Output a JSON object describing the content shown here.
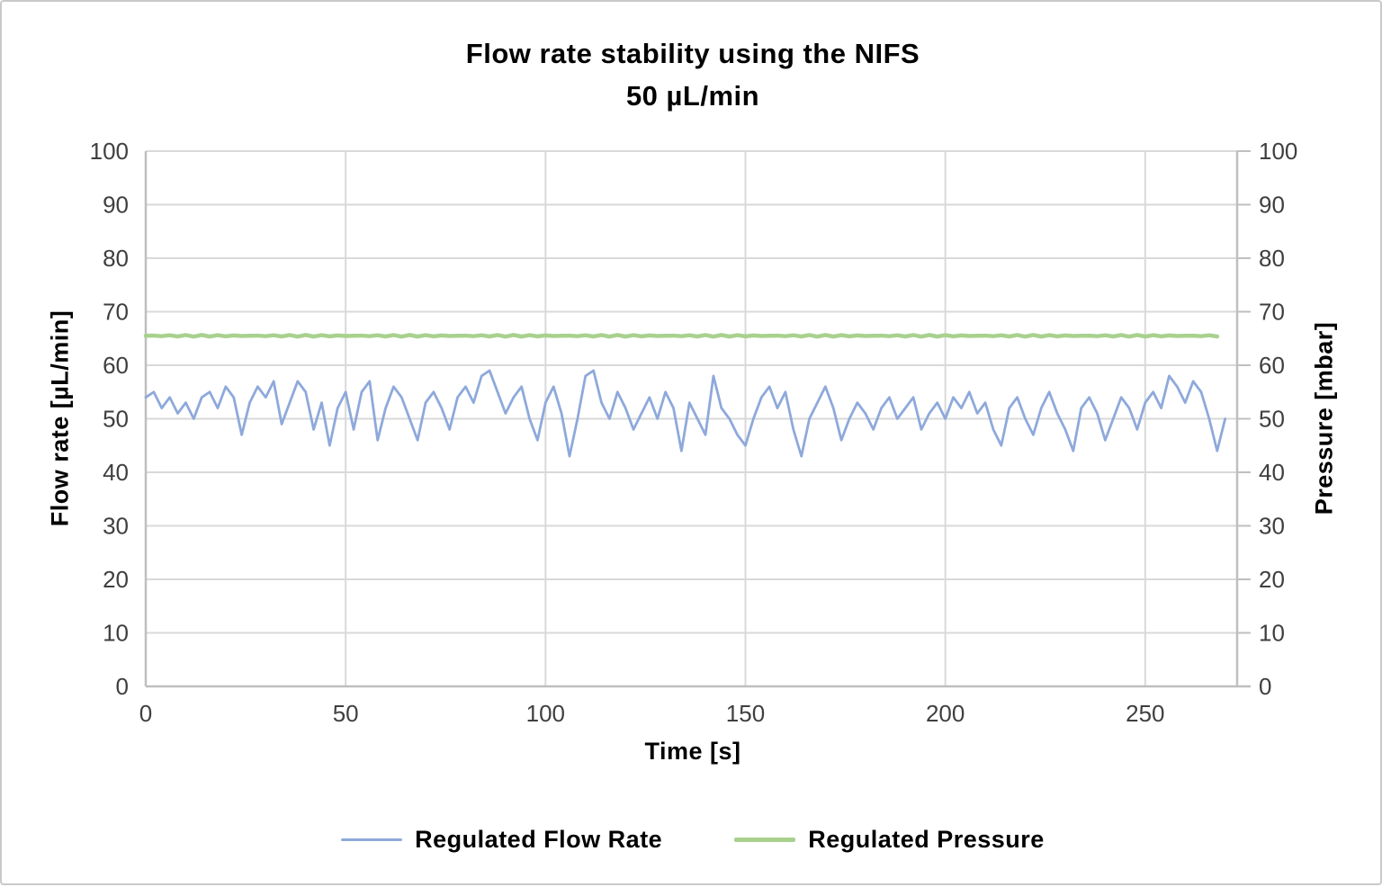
{
  "title": {
    "line1": "Flow rate stability using the NIFS",
    "line2": "50 µL/min"
  },
  "colors": {
    "flow_rate_line": "#8ea9db",
    "pressure_line": "#a9d18e",
    "gridline": "#d9d9d9",
    "axis_line": "#bfbfbf",
    "tick_label_text": "#3f3f3f",
    "title_text": "#000000",
    "background": "#ffffff"
  },
  "chart_data": {
    "type": "line",
    "title": "Flow rate stability using the NIFS 50 µL/min",
    "grid": true,
    "legend_position": "bottom",
    "x_axis": {
      "label": "Time [s]",
      "min": 0,
      "max": 273,
      "tick_step": 50,
      "ticks": [
        0,
        50,
        100,
        150,
        200,
        250
      ]
    },
    "y_axis_left": {
      "label": "Flow rate [µL/min]",
      "min": 0,
      "max": 100,
      "tick_step": 10,
      "ticks": [
        0,
        10,
        20,
        30,
        40,
        50,
        60,
        70,
        80,
        90,
        100
      ]
    },
    "y_axis_right": {
      "label": "Pressure [mbar]",
      "min": 0,
      "max": 100,
      "tick_step": 10,
      "ticks": [
        0,
        10,
        20,
        30,
        40,
        50,
        60,
        70,
        80,
        90,
        100
      ]
    },
    "series": [
      {
        "name": "Regulated Flow Rate",
        "axis": "left",
        "color": "#8ea9db",
        "x_start": 0,
        "x_step": 2,
        "values": [
          54,
          55,
          52,
          54,
          51,
          53,
          50,
          54,
          55,
          52,
          56,
          54,
          47,
          53,
          56,
          54,
          57,
          49,
          53,
          57,
          55,
          48,
          53,
          45,
          52,
          55,
          48,
          55,
          57,
          46,
          52,
          56,
          54,
          50,
          46,
          53,
          55,
          52,
          48,
          54,
          56,
          53,
          58,
          59,
          55,
          51,
          54,
          56,
          50,
          46,
          53,
          56,
          51,
          43,
          50,
          58,
          59,
          53,
          50,
          55,
          52,
          48,
          51,
          54,
          50,
          55,
          52,
          44,
          53,
          50,
          47,
          58,
          52,
          50,
          47,
          45,
          50,
          54,
          56,
          52,
          55,
          48,
          43,
          50,
          53,
          56,
          52,
          46,
          50,
          53,
          51,
          48,
          52,
          54,
          50,
          52,
          54,
          48,
          51,
          53,
          50,
          54,
          52,
          55,
          51,
          53,
          48,
          45,
          52,
          54,
          50,
          47,
          52,
          55,
          51,
          48,
          44,
          52,
          54,
          51,
          46,
          50,
          54,
          52,
          48,
          53,
          55,
          52,
          58,
          56,
          53,
          57,
          55,
          50,
          44,
          50
        ]
      },
      {
        "name": "Regulated Pressure",
        "axis": "right",
        "color": "#a9d18e",
        "x_start": 0,
        "x_end": 268,
        "x_step": 2,
        "values_constant": 65.5,
        "jitter": 0.3
      }
    ],
    "legend": [
      {
        "label": "Regulated Flow Rate",
        "color": "#8ea9db"
      },
      {
        "label": "Regulated Pressure",
        "color": "#a9d18e"
      }
    ]
  }
}
